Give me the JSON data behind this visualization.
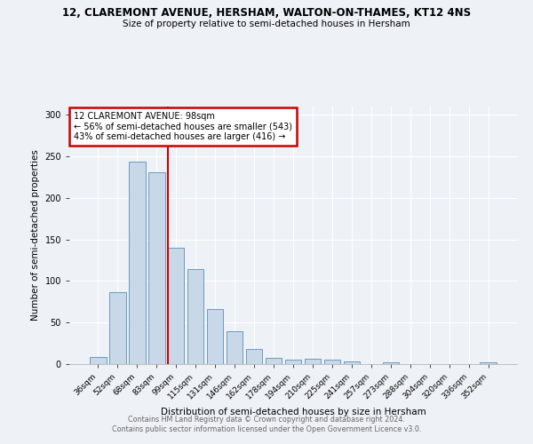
{
  "title": "12, CLAREMONT AVENUE, HERSHAM, WALTON-ON-THAMES, KT12 4NS",
  "subtitle": "Size of property relative to semi-detached houses in Hersham",
  "xlabel": "Distribution of semi-detached houses by size in Hersham",
  "ylabel": "Number of semi-detached properties",
  "footer1": "Contains HM Land Registry data © Crown copyright and database right 2024.",
  "footer2": "Contains public sector information licensed under the Open Government Licence v3.0.",
  "categories": [
    "36sqm",
    "52sqm",
    "68sqm",
    "83sqm",
    "99sqm",
    "115sqm",
    "131sqm",
    "146sqm",
    "162sqm",
    "178sqm",
    "194sqm",
    "210sqm",
    "225sqm",
    "241sqm",
    "257sqm",
    "273sqm",
    "288sqm",
    "304sqm",
    "320sqm",
    "336sqm",
    "352sqm"
  ],
  "values": [
    9,
    87,
    244,
    231,
    140,
    114,
    66,
    40,
    18,
    8,
    5,
    6,
    5,
    3,
    0,
    2,
    0,
    0,
    0,
    0,
    2
  ],
  "bar_color": "#c8d8e8",
  "bar_edge_color": "#5b8db8",
  "property_line_index": 4,
  "property_line_color": "#cc0000",
  "annotation_line1": "12 CLAREMONT AVENUE: 98sqm",
  "annotation_line2": "← 56% of semi-detached houses are smaller (543)",
  "annotation_line3": "43% of semi-detached houses are larger (416) →",
  "annotation_box_color": "#cc0000",
  "ylim": [
    0,
    310
  ],
  "yticks": [
    0,
    50,
    100,
    150,
    200,
    250,
    300
  ],
  "background_color": "#eef2f7",
  "plot_bg_color": "#eef2f7",
  "grid_color": "#ffffff"
}
